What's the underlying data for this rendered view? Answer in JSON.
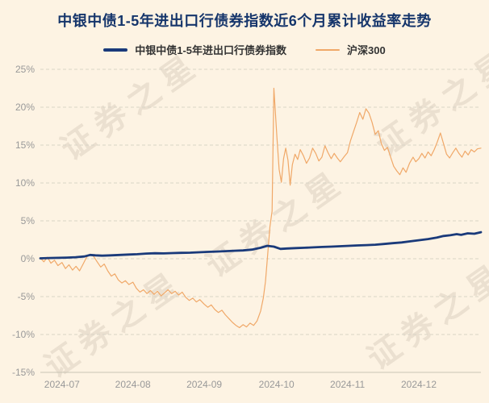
{
  "title": "中银中债1-5年进出口行债券指数近6个月累计收益率走势",
  "watermark": "证券之星",
  "legend": [
    {
      "label": "中银中债1-5年进出口行债券指数",
      "color": "#1a3a7a"
    },
    {
      "label": "沪深300",
      "color": "#f0a868"
    }
  ],
  "colors": {
    "background": "#fdf3e3",
    "title": "#15356b",
    "axis_label": "#999999",
    "grid": "#d9d4c6",
    "baseline": "#c9c4b4"
  },
  "chart_data": {
    "type": "line",
    "title": "中银中债1-5年进出口行债券指数近6个月累计收益率走势",
    "ylabel": "",
    "xlabel": "",
    "ylim": [
      -15,
      25
    ],
    "yticks": [
      25,
      20,
      15,
      10,
      5,
      0,
      -5,
      -10,
      -15
    ],
    "ytick_suffix": "%",
    "grid": "horizontal-dashed",
    "legend_position": "top",
    "xticks": [
      {
        "label": "2024-07",
        "pos": 0.049
      },
      {
        "label": "2024-08",
        "pos": 0.21
      },
      {
        "label": "2024-09",
        "pos": 0.372
      },
      {
        "label": "2024-10",
        "pos": 0.536
      },
      {
        "label": "2024-11",
        "pos": 0.697
      },
      {
        "label": "2024-12",
        "pos": 0.859
      }
    ],
    "series": [
      {
        "name": "中银中债1-5年进出口行债券指数",
        "color": "#1a3a7a",
        "width": 2.8,
        "points": [
          [
            0.0,
            0.05
          ],
          [
            0.02,
            0.1
          ],
          [
            0.04,
            0.12
          ],
          [
            0.06,
            0.15
          ],
          [
            0.08,
            0.2
          ],
          [
            0.1,
            0.3
          ],
          [
            0.113,
            0.5
          ],
          [
            0.125,
            0.45
          ],
          [
            0.14,
            0.4
          ],
          [
            0.16,
            0.45
          ],
          [
            0.18,
            0.5
          ],
          [
            0.2,
            0.55
          ],
          [
            0.22,
            0.6
          ],
          [
            0.24,
            0.68
          ],
          [
            0.26,
            0.72
          ],
          [
            0.28,
            0.7
          ],
          [
            0.3,
            0.75
          ],
          [
            0.32,
            0.78
          ],
          [
            0.34,
            0.8
          ],
          [
            0.36,
            0.85
          ],
          [
            0.38,
            0.9
          ],
          [
            0.4,
            0.95
          ],
          [
            0.42,
            1.0
          ],
          [
            0.44,
            1.05
          ],
          [
            0.46,
            1.1
          ],
          [
            0.48,
            1.2
          ],
          [
            0.5,
            1.45
          ],
          [
            0.515,
            1.7
          ],
          [
            0.53,
            1.6
          ],
          [
            0.545,
            1.3
          ],
          [
            0.56,
            1.35
          ],
          [
            0.58,
            1.4
          ],
          [
            0.6,
            1.45
          ],
          [
            0.62,
            1.5
          ],
          [
            0.64,
            1.55
          ],
          [
            0.66,
            1.6
          ],
          [
            0.68,
            1.65
          ],
          [
            0.7,
            1.7
          ],
          [
            0.72,
            1.75
          ],
          [
            0.74,
            1.8
          ],
          [
            0.76,
            1.85
          ],
          [
            0.78,
            1.95
          ],
          [
            0.8,
            2.05
          ],
          [
            0.82,
            2.15
          ],
          [
            0.84,
            2.3
          ],
          [
            0.86,
            2.45
          ],
          [
            0.88,
            2.6
          ],
          [
            0.9,
            2.8
          ],
          [
            0.915,
            3.0
          ],
          [
            0.93,
            3.1
          ],
          [
            0.945,
            3.25
          ],
          [
            0.955,
            3.15
          ],
          [
            0.97,
            3.35
          ],
          [
            0.985,
            3.3
          ],
          [
            1.0,
            3.5
          ]
        ]
      },
      {
        "name": "沪深300",
        "color": "#f0a868",
        "width": 1.2,
        "points": [
          [
            0.0,
            0.1
          ],
          [
            0.008,
            -0.4
          ],
          [
            0.016,
            0.2
          ],
          [
            0.024,
            -0.6
          ],
          [
            0.032,
            -0.2
          ],
          [
            0.04,
            -0.9
          ],
          [
            0.049,
            -0.5
          ],
          [
            0.057,
            -1.3
          ],
          [
            0.065,
            -0.8
          ],
          [
            0.073,
            -1.5
          ],
          [
            0.081,
            -1.0
          ],
          [
            0.089,
            -1.6
          ],
          [
            0.097,
            -0.7
          ],
          [
            0.105,
            0.2
          ],
          [
            0.113,
            0.6
          ],
          [
            0.121,
            0.3
          ],
          [
            0.129,
            -0.4
          ],
          [
            0.137,
            -1.1
          ],
          [
            0.145,
            -0.7
          ],
          [
            0.153,
            -1.6
          ],
          [
            0.161,
            -2.3
          ],
          [
            0.169,
            -2.0
          ],
          [
            0.177,
            -2.8
          ],
          [
            0.185,
            -3.2
          ],
          [
            0.193,
            -2.9
          ],
          [
            0.201,
            -3.4
          ],
          [
            0.21,
            -3.1
          ],
          [
            0.218,
            -3.9
          ],
          [
            0.226,
            -4.4
          ],
          [
            0.234,
            -4.1
          ],
          [
            0.242,
            -4.6
          ],
          [
            0.25,
            -4.2
          ],
          [
            0.258,
            -4.7
          ],
          [
            0.266,
            -4.3
          ],
          [
            0.274,
            -4.9
          ],
          [
            0.282,
            -4.5
          ],
          [
            0.29,
            -4.1
          ],
          [
            0.298,
            -4.6
          ],
          [
            0.306,
            -4.3
          ],
          [
            0.314,
            -4.8
          ],
          [
            0.322,
            -4.4
          ],
          [
            0.33,
            -5.1
          ],
          [
            0.338,
            -5.5
          ],
          [
            0.346,
            -5.2
          ],
          [
            0.354,
            -5.7
          ],
          [
            0.362,
            -5.4
          ],
          [
            0.372,
            -6.0
          ],
          [
            0.38,
            -6.4
          ],
          [
            0.388,
            -6.1
          ],
          [
            0.396,
            -6.7
          ],
          [
            0.404,
            -7.1
          ],
          [
            0.412,
            -6.8
          ],
          [
            0.42,
            -7.4
          ],
          [
            0.428,
            -7.9
          ],
          [
            0.436,
            -8.4
          ],
          [
            0.444,
            -8.8
          ],
          [
            0.452,
            -9.1
          ],
          [
            0.46,
            -8.7
          ],
          [
            0.468,
            -9.0
          ],
          [
            0.476,
            -8.5
          ],
          [
            0.484,
            -8.8
          ],
          [
            0.492,
            -8.2
          ],
          [
            0.5,
            -6.9
          ],
          [
            0.506,
            -5.2
          ],
          [
            0.511,
            -3.0
          ],
          [
            0.516,
            0.5
          ],
          [
            0.521,
            4.2
          ],
          [
            0.526,
            6.3
          ],
          [
            0.53,
            22.5
          ],
          [
            0.537,
            16.0
          ],
          [
            0.542,
            11.8
          ],
          [
            0.547,
            10.1
          ],
          [
            0.552,
            13.2
          ],
          [
            0.557,
            14.6
          ],
          [
            0.562,
            13.0
          ],
          [
            0.567,
            9.7
          ],
          [
            0.572,
            12.4
          ],
          [
            0.578,
            13.8
          ],
          [
            0.584,
            13.1
          ],
          [
            0.59,
            14.4
          ],
          [
            0.597,
            13.6
          ],
          [
            0.604,
            12.6
          ],
          [
            0.611,
            13.3
          ],
          [
            0.618,
            14.6
          ],
          [
            0.625,
            13.9
          ],
          [
            0.632,
            12.9
          ],
          [
            0.639,
            13.4
          ],
          [
            0.646,
            14.9
          ],
          [
            0.653,
            14.0
          ],
          [
            0.66,
            13.2
          ],
          [
            0.667,
            13.9
          ],
          [
            0.674,
            13.3
          ],
          [
            0.681,
            12.8
          ],
          [
            0.69,
            13.5
          ],
          [
            0.697,
            14.0
          ],
          [
            0.704,
            15.6
          ],
          [
            0.711,
            16.8
          ],
          [
            0.718,
            18.0
          ],
          [
            0.725,
            19.3
          ],
          [
            0.732,
            18.4
          ],
          [
            0.739,
            19.8
          ],
          [
            0.746,
            19.2
          ],
          [
            0.753,
            18.0
          ],
          [
            0.76,
            16.4
          ],
          [
            0.767,
            16.9
          ],
          [
            0.774,
            15.2
          ],
          [
            0.781,
            14.3
          ],
          [
            0.788,
            14.7
          ],
          [
            0.795,
            13.4
          ],
          [
            0.802,
            12.2
          ],
          [
            0.809,
            11.6
          ],
          [
            0.816,
            11.1
          ],
          [
            0.823,
            12.0
          ],
          [
            0.83,
            11.4
          ],
          [
            0.838,
            12.6
          ],
          [
            0.846,
            13.4
          ],
          [
            0.852,
            12.8
          ],
          [
            0.859,
            13.2
          ],
          [
            0.866,
            13.9
          ],
          [
            0.873,
            13.3
          ],
          [
            0.88,
            14.1
          ],
          [
            0.887,
            13.6
          ],
          [
            0.894,
            14.4
          ],
          [
            0.901,
            15.4
          ],
          [
            0.908,
            16.6
          ],
          [
            0.915,
            15.2
          ],
          [
            0.922,
            13.8
          ],
          [
            0.929,
            13.3
          ],
          [
            0.936,
            14.0
          ],
          [
            0.943,
            14.6
          ],
          [
            0.95,
            13.9
          ],
          [
            0.957,
            13.4
          ],
          [
            0.964,
            14.2
          ],
          [
            0.971,
            13.7
          ],
          [
            0.978,
            14.4
          ],
          [
            0.985,
            14.1
          ],
          [
            0.992,
            14.5
          ],
          [
            1.0,
            14.6
          ]
        ]
      }
    ]
  }
}
